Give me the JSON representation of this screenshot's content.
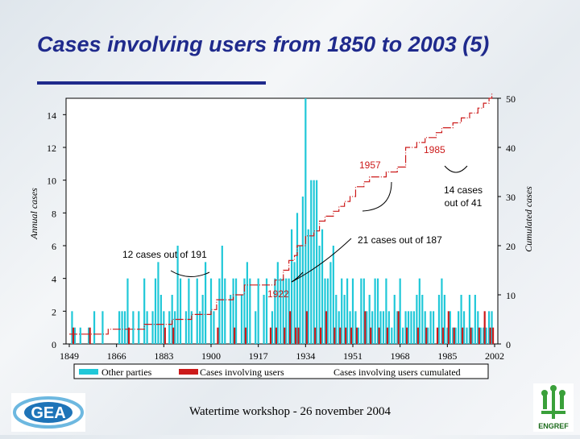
{
  "slide": {
    "title": "Cases involving users from 1850 to 2003 (5)",
    "footer": "Watertime workshop - 26 november 2004",
    "logos": {
      "left": {
        "text": "GEA",
        "icon": "gea-logo-icon"
      },
      "right": {
        "text": "ENGREF",
        "icon": "engref-logo-icon"
      }
    }
  },
  "colors": {
    "title": "#1f2a8c",
    "other_parties": "#20c8d8",
    "involving_users": "#cc1a1a",
    "cumulated_line": "#cc1a1a"
  },
  "chart_data": {
    "type": "bar",
    "xlabel": "",
    "ylabel": "Annual cases",
    "y2label": "Cumulated cases",
    "ylim": [
      0,
      15
    ],
    "y2lim": [
      0,
      50
    ],
    "x_ticks": [
      "1849",
      "1866",
      "1883",
      "1900",
      "1917",
      "1934",
      "1951",
      "1968",
      "1985",
      "2002"
    ],
    "y_ticks": [
      "0",
      "2",
      "4",
      "6",
      "8",
      "10",
      "12",
      "14"
    ],
    "y2_ticks": [
      "0",
      "10",
      "20",
      "30",
      "40",
      "50"
    ],
    "legend": [
      "Other parties",
      "Cases involving users",
      "Cases involving users cumulated"
    ],
    "legend_position": "bottom",
    "grid": false,
    "series": [
      {
        "name": "Other parties",
        "kind": "bar",
        "axis": "left",
        "x": [
          1850,
          1851,
          1853,
          1856,
          1858,
          1861,
          1867,
          1868,
          1869,
          1870,
          1872,
          1874,
          1876,
          1877,
          1879,
          1880,
          1881,
          1882,
          1883,
          1885,
          1886,
          1887,
          1888,
          1889,
          1891,
          1892,
          1893,
          1895,
          1896,
          1897,
          1898,
          1900,
          1901,
          1903,
          1904,
          1905,
          1907,
          1908,
          1909,
          1911,
          1912,
          1913,
          1914,
          1916,
          1917,
          1919,
          1920,
          1922,
          1923,
          1924,
          1925,
          1926,
          1927,
          1928,
          1929,
          1930,
          1931,
          1932,
          1933,
          1934,
          1935,
          1936,
          1937,
          1938,
          1939,
          1940,
          1941,
          1942,
          1943,
          1944,
          1945,
          1946,
          1947,
          1948,
          1949,
          1950,
          1951,
          1952,
          1953,
          1954,
          1955,
          1956,
          1957,
          1958,
          1959,
          1960,
          1961,
          1962,
          1963,
          1964,
          1965,
          1966,
          1967,
          1968,
          1969,
          1970,
          1971,
          1972,
          1973,
          1974,
          1975,
          1976,
          1977,
          1978,
          1979,
          1980,
          1982,
          1983,
          1984,
          1985,
          1986,
          1987,
          1988,
          1989,
          1990,
          1991,
          1992,
          1993,
          1994,
          1995,
          1996,
          1997,
          1998,
          1999,
          2000,
          2001
        ],
        "values": [
          2,
          1,
          1,
          1,
          2,
          2,
          2,
          2,
          2,
          4,
          2,
          2,
          4,
          2,
          2,
          4,
          5,
          3,
          2,
          2,
          3,
          2,
          6,
          4,
          2,
          4,
          2,
          4,
          2,
          3,
          5,
          4,
          2,
          4,
          6,
          4,
          3,
          4,
          4,
          3,
          4,
          5,
          4,
          2,
          4,
          3,
          4,
          2,
          4,
          5,
          4,
          4,
          4,
          4,
          7,
          5,
          8,
          6,
          9,
          15,
          7,
          10,
          10,
          10,
          6,
          7,
          4,
          4,
          5,
          6,
          3,
          2,
          4,
          3,
          4,
          2,
          4,
          2,
          1,
          4,
          4,
          2,
          3,
          2,
          4,
          4,
          2,
          2,
          4,
          2,
          1,
          3,
          2,
          4,
          1,
          2,
          2,
          2,
          2,
          3,
          4,
          3,
          2,
          1,
          2,
          2,
          3,
          4,
          3,
          1,
          2,
          1,
          1,
          2,
          3,
          2,
          1,
          3,
          1,
          3,
          2,
          1,
          1,
          1,
          2,
          2
        ]
      },
      {
        "name": "Cases involving users",
        "kind": "bar",
        "axis": "left",
        "x": [
          1850,
          1856,
          1870,
          1883,
          1886,
          1902,
          1908,
          1912,
          1921,
          1923,
          1926,
          1928,
          1930,
          1931,
          1934,
          1937,
          1939,
          1941,
          1944,
          1946,
          1948,
          1950,
          1952,
          1955,
          1957,
          1960,
          1963,
          1967,
          1970,
          1974,
          1977,
          1981,
          1983,
          1985,
          1987,
          1990,
          1993,
          1996,
          1998,
          2000,
          2001
        ],
        "values": [
          1,
          1,
          1,
          1,
          1,
          1,
          1,
          1,
          1,
          1,
          1,
          2,
          1,
          1,
          2,
          1,
          1,
          2,
          1,
          1,
          1,
          1,
          1,
          2,
          1,
          1,
          1,
          2,
          1,
          1,
          1,
          1,
          1,
          2,
          1,
          1,
          1,
          1,
          2,
          1,
          1
        ]
      },
      {
        "name": "Cases involving users cumulated",
        "kind": "line",
        "axis": "right",
        "x": [
          1849,
          1856,
          1863,
          1870,
          1876,
          1883,
          1886,
          1893,
          1900,
          1902,
          1908,
          1912,
          1921,
          1923,
          1926,
          1928,
          1930,
          1931,
          1934,
          1937,
          1939,
          1941,
          1944,
          1946,
          1948,
          1950,
          1952,
          1955,
          1957,
          1960,
          1963,
          1967,
          1970,
          1974,
          1977,
          1981,
          1983,
          1985,
          1987,
          1990,
          1993,
          1996,
          1998,
          2000,
          2001
        ],
        "values": [
          2,
          2,
          3,
          3,
          4,
          4,
          5,
          6,
          7,
          9,
          10,
          12,
          12,
          13,
          15,
          17,
          18,
          20,
          22,
          23,
          25,
          26,
          27,
          28,
          29,
          30,
          32,
          33,
          34,
          34,
          35,
          36,
          40,
          41,
          42,
          43,
          44,
          44,
          45,
          46,
          47,
          48,
          49,
          50,
          51
        ]
      }
    ],
    "annotations": [
      {
        "text": "12 cases out of 191"
      },
      {
        "text": "1922"
      },
      {
        "text": "21 cases out of 187"
      },
      {
        "text": "1957"
      },
      {
        "text": "1985"
      },
      {
        "text": "14 cases out of 41"
      }
    ]
  }
}
